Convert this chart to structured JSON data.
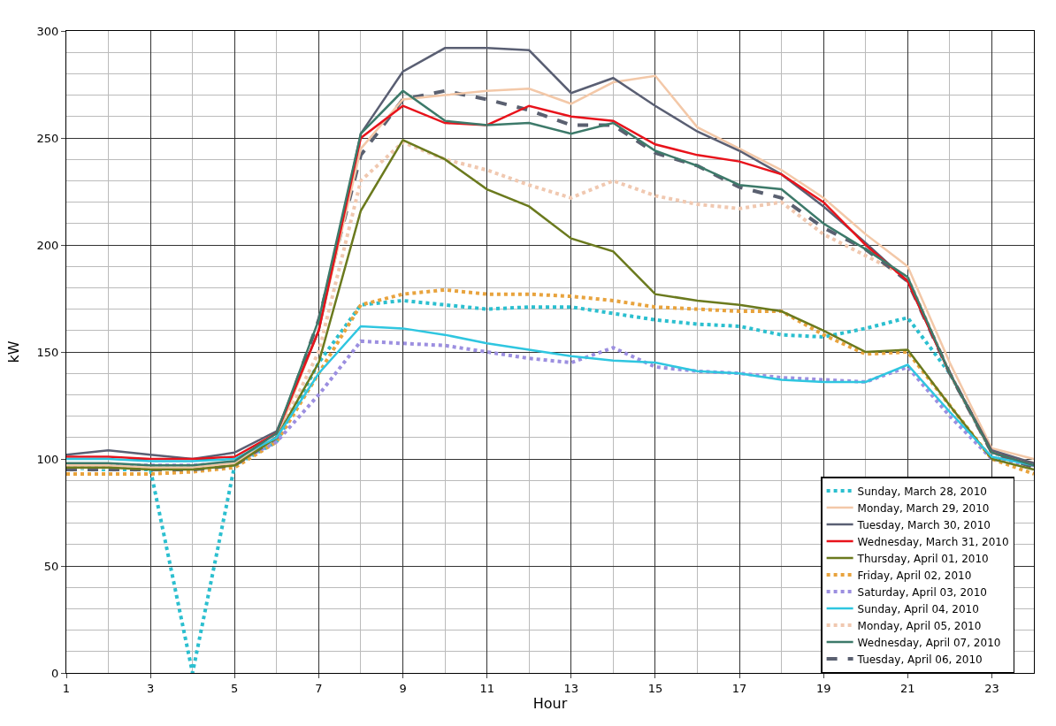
{
  "chart_data": {
    "type": "line",
    "xlabel": "Hour",
    "ylabel": "kW",
    "x": [
      1,
      2,
      3,
      4,
      5,
      6,
      7,
      8,
      9,
      10,
      11,
      12,
      13,
      14,
      15,
      16,
      17,
      18,
      19,
      20,
      21,
      22,
      23,
      24
    ],
    "xlim": [
      1,
      24
    ],
    "xticks": [
      1,
      3,
      5,
      7,
      9,
      11,
      13,
      15,
      17,
      19,
      21,
      23
    ],
    "ylim": [
      0,
      300
    ],
    "yticks": [
      0,
      50,
      100,
      150,
      200,
      250,
      300
    ],
    "grid": true,
    "legend": "bottom right",
    "marker": "none",
    "series": [
      {
        "name": "Sunday, March 28, 2010",
        "color": "#2bbfcf",
        "line_style": "dotted",
        "values": [
          96,
          95,
          95,
          0,
          97,
          108,
          145,
          172,
          174,
          172,
          170,
          171,
          171,
          168,
          165,
          163,
          162,
          158,
          157,
          161,
          166,
          140,
          103,
          97
        ]
      },
      {
        "name": "Monday, March 29, 2010",
        "color": "#f3c8a8",
        "line_style": "solid",
        "values": [
          97,
          97,
          96,
          96,
          98,
          110,
          160,
          245,
          268,
          270,
          272,
          273,
          266,
          276,
          279,
          255,
          245,
          235,
          222,
          205,
          190,
          145,
          105,
          100
        ]
      },
      {
        "name": "Tuesday, March 30, 2010",
        "color": "#5a5f73",
        "line_style": "solid",
        "values": [
          102,
          104,
          102,
          100,
          103,
          113,
          160,
          252,
          281,
          292,
          292,
          291,
          271,
          278,
          265,
          253,
          244,
          233,
          218,
          201,
          183,
          140,
          104,
          98
        ]
      },
      {
        "name": "Wednesday, March 31, 2010",
        "color": "#e8131b",
        "line_style": "solid",
        "values": [
          101,
          101,
          100,
          100,
          101,
          112,
          160,
          250,
          265,
          257,
          256,
          265,
          260,
          258,
          247,
          242,
          239,
          233,
          220,
          200,
          183,
          140,
          103,
          97
        ]
      },
      {
        "name": "Thursday, April 01, 2010",
        "color": "#6b7a1e",
        "line_style": "solid",
        "values": [
          96,
          96,
          95,
          95,
          97,
          110,
          145,
          216,
          249,
          240,
          226,
          218,
          203,
          197,
          177,
          174,
          172,
          169,
          160,
          150,
          151,
          125,
          100,
          95
        ]
      },
      {
        "name": "Friday, April 02, 2010",
        "color": "#e8a33d",
        "line_style": "dotted",
        "values": [
          93,
          93,
          93,
          94,
          96,
          108,
          140,
          172,
          177,
          179,
          177,
          177,
          176,
          174,
          171,
          170,
          169,
          169,
          158,
          149,
          150,
          125,
          100,
          93
        ]
      },
      {
        "name": "Saturday, April 03, 2010",
        "color": "#9c8fe0",
        "line_style": "dotted",
        "values": [
          97,
          97,
          97,
          97,
          98,
          108,
          130,
          155,
          154,
          153,
          150,
          147,
          145,
          152,
          143,
          141,
          140,
          138,
          137,
          136,
          143,
          120,
          100,
          97
        ]
      },
      {
        "name": "Sunday, April 04, 2010",
        "color": "#2fc6e0",
        "line_style": "solid",
        "values": [
          100,
          100,
          99,
          99,
          100,
          110,
          140,
          162,
          161,
          158,
          154,
          151,
          148,
          146,
          145,
          141,
          140,
          137,
          136,
          136,
          144,
          122,
          101,
          97
        ]
      },
      {
        "name": "Monday, April 05, 2010",
        "color": "#f0c8b0",
        "line_style": "dotted",
        "values": [
          96,
          96,
          96,
          96,
          98,
          110,
          150,
          230,
          248,
          240,
          235,
          228,
          222,
          230,
          223,
          219,
          217,
          220,
          205,
          195,
          185,
          140,
          103,
          98
        ]
      },
      {
        "name": "Wednesday, April 07, 2010",
        "color": "#3d7a6a",
        "line_style": "solid",
        "values": [
          98,
          98,
          97,
          97,
          99,
          112,
          165,
          252,
          272,
          258,
          256,
          257,
          252,
          257,
          244,
          237,
          228,
          226,
          210,
          198,
          185,
          140,
          103,
          97
        ]
      },
      {
        "name": "Tuesday, April 06, 2010",
        "color": "#5a6070",
        "line_style": "dashed",
        "values": [
          95,
          95,
          95,
          95,
          97,
          110,
          165,
          242,
          268,
          272,
          268,
          263,
          256,
          256,
          243,
          237,
          227,
          222,
          208,
          198,
          183,
          140,
          103,
          96
        ]
      }
    ]
  }
}
